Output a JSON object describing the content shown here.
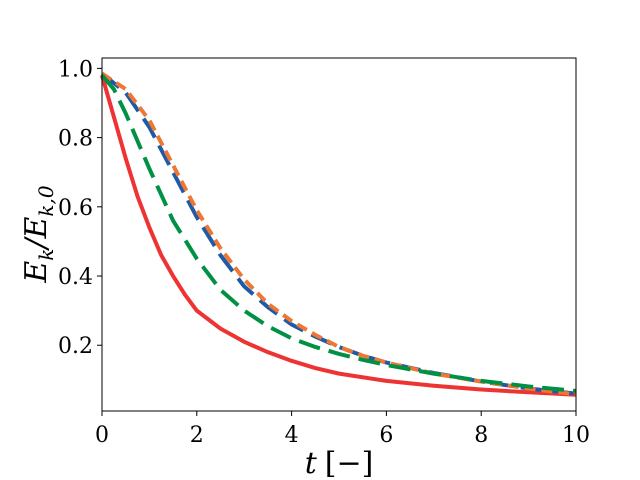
{
  "chart_data": {
    "type": "line",
    "xlabel_main": "t",
    "xlabel_unit": "[−]",
    "ylabel_main": "E",
    "ylabel_sub1": "k",
    "ylabel_sep": "/E",
    "ylabel_sub2": "k,0",
    "xlim": [
      0,
      10
    ],
    "ylim": [
      0.01,
      1.03
    ],
    "grid": false,
    "x_ticks": [
      "0",
      "2",
      "4",
      "6",
      "8",
      "10"
    ],
    "y_ticks": [
      "0.2",
      "0.4",
      "0.6",
      "0.8",
      "1.0"
    ],
    "series": [
      {
        "color": "#ee3333",
        "dash": "solid",
        "x": [
          0,
          0.25,
          0.5,
          0.75,
          1,
          1.25,
          1.5,
          1.75,
          2,
          2.5,
          3,
          3.5,
          4,
          4.5,
          5,
          6,
          7,
          8,
          9,
          10
        ],
        "y": [
          0.98,
          0.86,
          0.74,
          0.63,
          0.54,
          0.46,
          0.4,
          0.346,
          0.3,
          0.248,
          0.21,
          0.18,
          0.155,
          0.134,
          0.118,
          0.097,
          0.083,
          0.072,
          0.064,
          0.057
        ]
      },
      {
        "color": "#1f5aa6",
        "dash": "long-dash",
        "x": [
          0,
          0.5,
          1,
          1.5,
          2,
          2.5,
          3,
          3.5,
          4,
          4.5,
          5,
          5.5,
          6,
          7,
          8,
          9,
          10
        ],
        "y": [
          0.985,
          0.93,
          0.83,
          0.7,
          0.57,
          0.46,
          0.37,
          0.31,
          0.26,
          0.225,
          0.195,
          0.17,
          0.15,
          0.12,
          0.095,
          0.075,
          0.06
        ]
      },
      {
        "color": "#ee7733",
        "dash": "short-dash",
        "x": [
          0,
          0.5,
          1,
          1.5,
          2,
          2.5,
          3,
          3.5,
          4,
          4.5,
          5,
          5.5,
          6,
          7,
          8,
          9,
          10
        ],
        "y": [
          0.985,
          0.94,
          0.85,
          0.72,
          0.59,
          0.48,
          0.39,
          0.32,
          0.27,
          0.23,
          0.195,
          0.17,
          0.15,
          0.118,
          0.095,
          0.075,
          0.058
        ]
      },
      {
        "color": "#009144",
        "dash": "long-dash",
        "x": [
          0,
          0.25,
          0.5,
          0.75,
          1,
          1.5,
          2,
          2.5,
          3,
          3.5,
          4,
          4.5,
          5,
          5.5,
          6,
          7,
          8,
          9,
          10
        ],
        "y": [
          0.98,
          0.94,
          0.87,
          0.79,
          0.71,
          0.56,
          0.45,
          0.36,
          0.3,
          0.255,
          0.22,
          0.195,
          0.175,
          0.158,
          0.143,
          0.118,
          0.097,
          0.081,
          0.068
        ]
      }
    ]
  }
}
